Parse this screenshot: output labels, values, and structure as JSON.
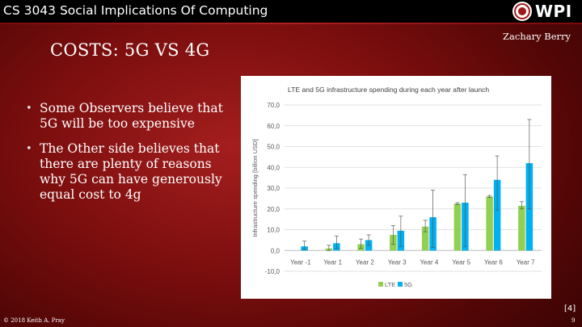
{
  "header": {
    "course_title": "CS 3043 Social Implications Of Computing",
    "logo_text": "WPI",
    "logo_icon": "wpi-seal-icon"
  },
  "author": "Zachary Berry",
  "slide": {
    "title": "COSTS: 5G VS 4G",
    "bullets": [
      "Some Observers believe that 5G will be too expensive",
      "The Other side believes that there are plenty of reasons why 5G can have generously equal cost to 4g"
    ]
  },
  "citation": "[4]",
  "footer": {
    "copyright": "© 2018 Keith A. Pray",
    "page_number": "9"
  },
  "chart_data": {
    "type": "bar",
    "title": "LTE and 5G infrastructure spending during each year after launch",
    "ylabel": "Infrastructure spending [billion USD]",
    "xlabel": "",
    "ylim": [
      -10,
      70
    ],
    "yticks": [
      -10,
      0,
      10,
      20,
      30,
      40,
      50,
      60,
      70
    ],
    "ytick_labels": [
      "-10,0",
      "0,0",
      "10,0",
      "20,0",
      "30,0",
      "40,0",
      "50,0",
      "60,0",
      "70,0"
    ],
    "grid": true,
    "legend_position": "bottom",
    "categories": [
      "Year -1",
      "Year 1",
      "Year 2",
      "Year 3",
      "Year 4",
      "Year 5",
      "Year 6",
      "Year 7"
    ],
    "series": [
      {
        "name": "LTE",
        "color": "#92d050",
        "values": [
          null,
          1,
          3,
          7.5,
          11.5,
          22.5,
          26,
          21.5
        ],
        "error_low": [
          null,
          0,
          1,
          3,
          9,
          22,
          25.5,
          20
        ],
        "error_high": [
          null,
          2.5,
          5.5,
          12,
          14.5,
          23,
          26.5,
          23.5
        ]
      },
      {
        "name": "5G",
        "color": "#00b0f0",
        "values": [
          2,
          3.5,
          5,
          9.5,
          16,
          23,
          34,
          42
        ],
        "error_low": [
          0.5,
          1,
          2.5,
          2,
          1.5,
          2,
          19.5,
          20
        ],
        "error_high": [
          4.5,
          7,
          7.5,
          16.5,
          29,
          36.5,
          45.5,
          63
        ]
      }
    ]
  }
}
